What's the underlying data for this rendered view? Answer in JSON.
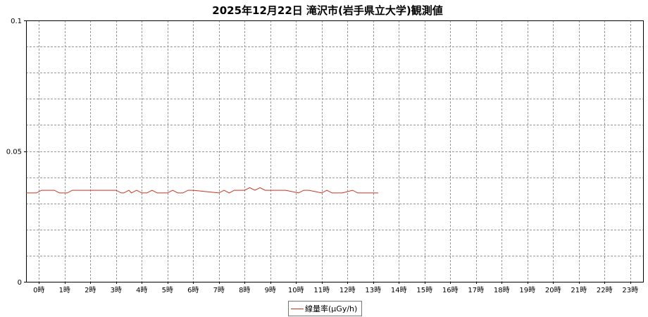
{
  "chart_data": {
    "type": "line",
    "title": "2025年12月22日 滝沢市(岩手県立大学)観測値",
    "x_tick_labels": [
      "0時",
      "1時",
      "2時",
      "3時",
      "4時",
      "5時",
      "6時",
      "7時",
      "8時",
      "9時",
      "10時",
      "11時",
      "12時",
      "13時",
      "14時",
      "15時",
      "16時",
      "17時",
      "18時",
      "19時",
      "20時",
      "21時",
      "22時",
      "23時"
    ],
    "y_tick_labels": [
      "0",
      "0.05",
      "0.1"
    ],
    "ylim": [
      0,
      0.1
    ],
    "xlim": [
      -0.5,
      23.5
    ],
    "grid": true,
    "legend_position": "bottom-center",
    "series": [
      {
        "name": "線量率(μGy/h)",
        "color": "#cc3322",
        "x": [
          -0.5,
          -0.1,
          0.1,
          0.6,
          0.8,
          1.0,
          1.1,
          1.3,
          2.0,
          3.0,
          3.2,
          3.3,
          3.5,
          3.6,
          3.8,
          4.0,
          4.2,
          4.4,
          4.6,
          4.8,
          5.0,
          5.2,
          5.4,
          5.6,
          5.8,
          6.0,
          7.0,
          7.2,
          7.4,
          7.6,
          7.8,
          8.0,
          8.2,
          8.4,
          8.6,
          8.8,
          9.0,
          9.2,
          9.4,
          9.6,
          10.1,
          10.3,
          10.5,
          11.0,
          11.2,
          11.4,
          11.6,
          11.8,
          12.2,
          12.4,
          12.6,
          12.8,
          13.2
        ],
        "y": [
          0.034,
          0.034,
          0.035,
          0.035,
          0.034,
          0.034,
          0.034,
          0.035,
          0.035,
          0.035,
          0.034,
          0.034,
          0.035,
          0.034,
          0.035,
          0.034,
          0.034,
          0.035,
          0.034,
          0.034,
          0.034,
          0.035,
          0.034,
          0.034,
          0.035,
          0.035,
          0.034,
          0.035,
          0.034,
          0.035,
          0.035,
          0.035,
          0.036,
          0.035,
          0.036,
          0.035,
          0.035,
          0.035,
          0.035,
          0.035,
          0.034,
          0.035,
          0.035,
          0.034,
          0.035,
          0.034,
          0.034,
          0.034,
          0.035,
          0.034,
          0.034,
          0.034,
          0.034
        ]
      }
    ]
  }
}
